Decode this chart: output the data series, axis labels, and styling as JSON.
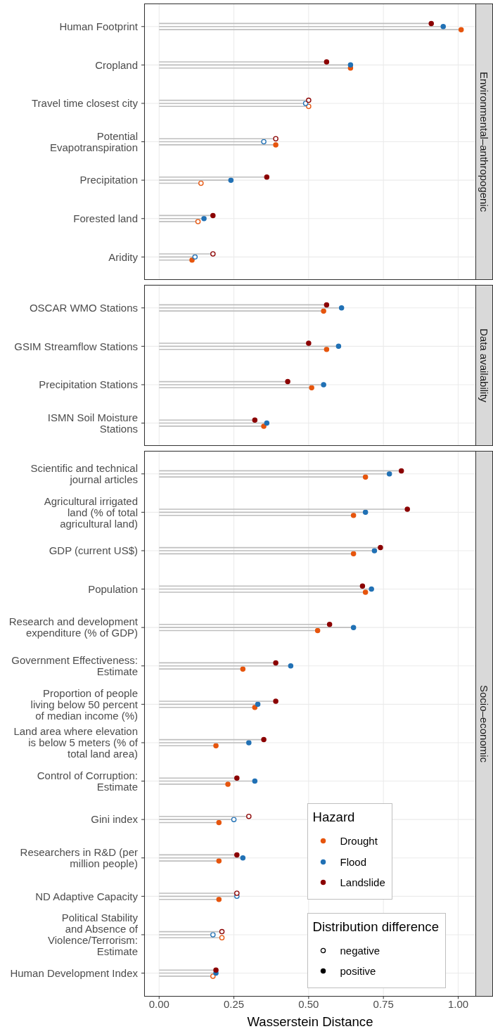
{
  "chart_data": [
    {
      "type": "lollipop",
      "orientation": "horizontal",
      "title": "Environmental–anthropogenic",
      "categories": [
        "Human Footprint",
        "Cropland",
        "Travel time closest city",
        "Potential\nEvapotranspiration",
        "Precipitation",
        "Forested land",
        "Aridity"
      ],
      "series": [
        {
          "color": "#e6550d",
          "values": [
            1.01,
            0.64,
            0.5,
            0.39,
            0.14,
            0.13,
            0.11
          ],
          "colors": [
            "#e6550d",
            "#e6550d",
            "#ffffff",
            "#e6550d",
            "#ffffff",
            "#ffffff",
            "#e6550d"
          ]
        },
        {
          "color": "#2171b5",
          "values": [
            0.95,
            0.64,
            0.49,
            0.35,
            0.24,
            0.15,
            0.12
          ],
          "colors": [
            "#2171b5",
            "#2171b5",
            "#ffffff",
            "#ffffff",
            "#2171b5",
            "#2171b5",
            "#ffffff"
          ]
        },
        {
          "color": "#8b0000",
          "values": [
            0.91,
            0.56,
            0.5,
            0.39,
            0.36,
            0.18,
            0.18
          ],
          "colors": [
            "#8b0000",
            "#8b0000",
            "#ffffff",
            "#ffffff",
            "#8b0000",
            "#8b0000",
            "#ffffff"
          ]
        }
      ],
      "xlim": [
        -0.05,
        1.06
      ],
      "xticks": [
        0,
        0.25,
        0.5,
        0.75,
        1
      ],
      "grid": true,
      "marker": "circle",
      "tick_labels": "y"
    },
    {
      "type": "lollipop",
      "orientation": "horizontal",
      "title": "Data availability",
      "categories": [
        "OSCAR WMO Stations",
        "GSIM Streamflow Stations",
        "Precipitation Stations",
        "ISMN Soil Moisture\nStations"
      ],
      "series": [
        {
          "color": "#e6550d",
          "values": [
            0.55,
            0.56,
            0.51,
            0.35
          ]
        },
        {
          "color": "#2171b5",
          "values": [
            0.61,
            0.6,
            0.55,
            0.36
          ]
        },
        {
          "color": "#8b0000",
          "values": [
            0.56,
            0.5,
            0.43,
            0.32
          ]
        }
      ],
      "xlim": [
        -0.05,
        1.06
      ],
      "xticks": [
        0,
        0.25,
        0.5,
        0.75,
        1
      ],
      "grid": true,
      "marker": "circle",
      "tick_labels": "y"
    },
    {
      "type": "lollipop",
      "orientation": "horizontal",
      "title": "Socio–economic",
      "xlabel": "Wasserstein Distance",
      "categories": [
        "Scientific and technical\njournal articles",
        "Agricultural irrigated\nland (% of total\nagricultural land)",
        "GDP (current US$)",
        "Population",
        "Research and development\nexpenditure (% of GDP)",
        "Government Effectiveness:\nEstimate",
        "Proportion of people\nliving below 50 percent\nof median income (%)",
        "Land area where elevation\nis below 5 meters (% of\ntotal land area)",
        "Control of Corruption:\nEstimate",
        "Gini index",
        "Researchers in R&D (per\nmillion people)",
        "ND Adaptive Capacity",
        "Political Stability\nand Absence of\nViolence/Terrorism:\nEstimate",
        "Human Development Index"
      ],
      "series": [
        {
          "name": "Drought",
          "color": "#e6550d",
          "values": [
            0.69,
            0.65,
            0.65,
            0.69,
            0.53,
            0.28,
            0.32,
            0.19,
            0.23,
            0.2,
            0.2,
            0.2,
            0.21,
            0.18
          ],
          "colors": [
            "#e6550d",
            "#e6550d",
            "#e6550d",
            "#e6550d",
            "#e6550d",
            "#e6550d",
            "#e6550d",
            "#e6550d",
            "#e6550d",
            "#e6550d",
            "#e6550d",
            "#e6550d",
            "#ffffff",
            "#ffffff"
          ]
        },
        {
          "name": "Flood",
          "color": "#2171b5",
          "values": [
            0.77,
            0.69,
            0.72,
            0.71,
            0.65,
            0.44,
            0.33,
            0.3,
            0.32,
            0.25,
            0.28,
            0.26,
            0.18,
            0.19
          ],
          "colors": [
            "#2171b5",
            "#2171b5",
            "#2171b5",
            "#2171b5",
            "#2171b5",
            "#2171b5",
            "#2171b5",
            "#2171b5",
            "#2171b5",
            "#ffffff",
            "#2171b5",
            "#ffffff",
            "#ffffff",
            "#2171b5"
          ]
        },
        {
          "name": "Landslide",
          "color": "#8b0000",
          "values": [
            0.81,
            0.83,
            0.74,
            0.68,
            0.57,
            0.39,
            0.39,
            0.35,
            0.26,
            0.3,
            0.26,
            0.26,
            0.21,
            0.19
          ],
          "colors": [
            "#8b0000",
            "#8b0000",
            "#8b0000",
            "#8b0000",
            "#8b0000",
            "#8b0000",
            "#8b0000",
            "#8b0000",
            "#8b0000",
            "#ffffff",
            "#8b0000",
            "#ffffff",
            "#ffffff",
            "#8b0000"
          ]
        }
      ],
      "xlim": [
        -0.05,
        1.06
      ],
      "xticks": [
        {
          "value": 0,
          "label": "0.00"
        },
        0.25,
        {
          "value": 0.5,
          "label": "0.50"
        },
        0.75,
        {
          "value": 1,
          "label": "1.00"
        }
      ],
      "grid": true,
      "marker": "circle",
      "legend": "bottom right",
      "legend_title": "Hazard",
      "annotations": [
        "Distribution difference",
        "negative",
        "positive"
      ]
    }
  ]
}
